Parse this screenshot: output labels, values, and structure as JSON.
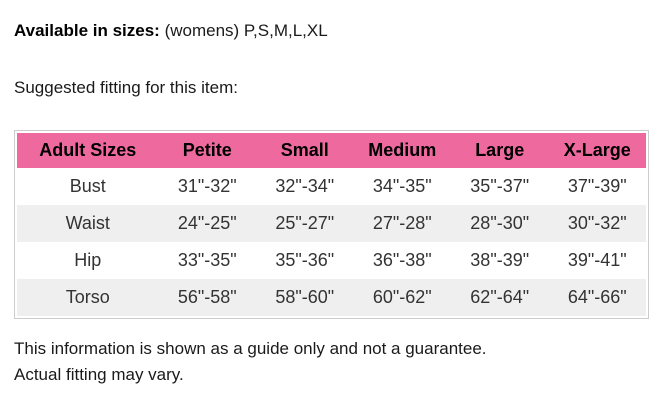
{
  "page": {
    "available": {
      "label": "Available in sizes:",
      "value": "(womens) P,S,M,L,XL"
    },
    "fitting_heading": "Suggested fitting for this item:",
    "disclaimer_line1": "This information is shown as a guide only and not a guarantee.",
    "disclaimer_line2": "Actual fitting may vary."
  },
  "size_table": {
    "columns": [
      "Adult Sizes",
      "Petite",
      "Small",
      "Medium",
      "Large",
      "X-Large"
    ],
    "rows": [
      {
        "label": "Bust",
        "values": [
          "31\"-32\"",
          "32\"-34\"",
          "34\"-35\"",
          "35\"-37\"",
          "37\"-39\""
        ]
      },
      {
        "label": "Waist",
        "values": [
          "24\"-25\"",
          "25\"-27\"",
          "27\"-28\"",
          "28\"-30\"",
          "30\"-32\""
        ]
      },
      {
        "label": "Hip",
        "values": [
          "33\"-35\"",
          "35\"-36\"",
          "36\"-38\"",
          "38\"-39\"",
          "39\"-41\""
        ]
      },
      {
        "label": "Torso",
        "values": [
          "56\"-58\"",
          "58\"-60\"",
          "60\"-62\"",
          "62\"-64\"",
          "64\"-66\""
        ]
      }
    ],
    "colors": {
      "header_bg": "#ee6a9e",
      "header_text": "#000000",
      "row_bg": "#ffffff",
      "row_alt_bg": "#efefef",
      "border": "#cccccc",
      "cell_text": "#333333"
    }
  }
}
